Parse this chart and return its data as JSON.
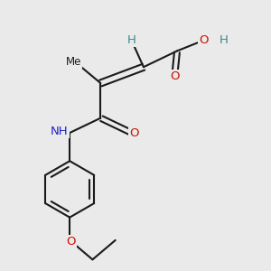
{
  "background_color": "#eaeaea",
  "bond_color": "#1a1a1a",
  "atom_colors": {
    "C": "#1a1a1a",
    "H": "#3a8a8a",
    "O": "#cc1100",
    "N": "#2222cc"
  },
  "figsize": [
    3.0,
    3.0
  ],
  "dpi": 100,
  "bond_lw": 1.5,
  "font_size": 9.5
}
